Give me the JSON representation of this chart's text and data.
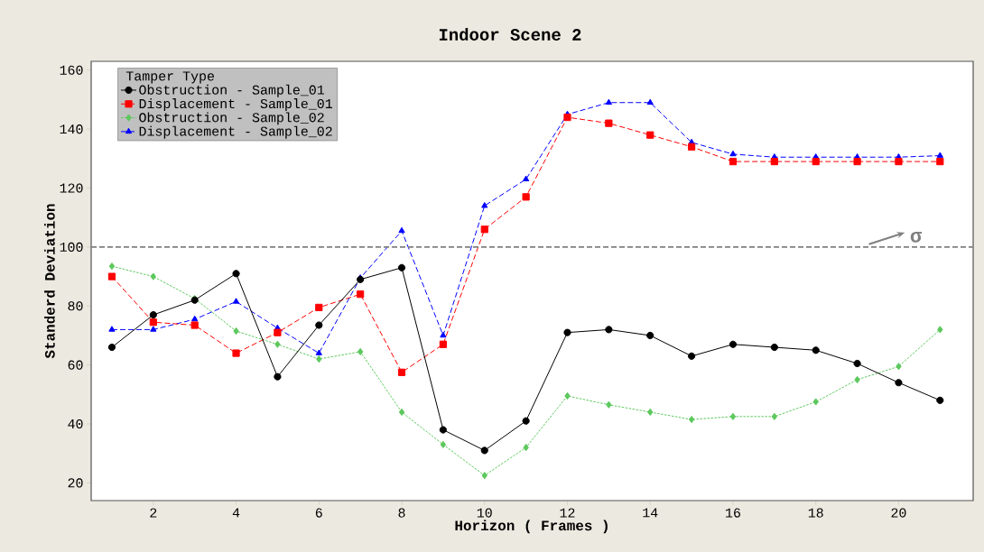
{
  "chart_data": {
    "type": "line",
    "title": "Indoor Scene 2",
    "xlabel": "Horizon ( Frames )",
    "ylabel": "Standerd Deviation",
    "legend_title": "Tamper Type",
    "x": [
      1,
      2,
      3,
      4,
      5,
      6,
      7,
      8,
      9,
      10,
      11,
      12,
      13,
      14,
      15,
      16,
      17,
      18,
      19,
      20,
      21
    ],
    "series": [
      {
        "name": "Obstruction - Sample_01",
        "color": "#000000",
        "marker": "circle",
        "line_style": "solid",
        "values": [
          66,
          77,
          82,
          91,
          56,
          73.5,
          89,
          93,
          38,
          31,
          41,
          71,
          72,
          70,
          63,
          67,
          66,
          65,
          60.5,
          54,
          48
        ]
      },
      {
        "name": "Displacement - Sample_01",
        "color": "#ff0000",
        "marker": "square",
        "line_style": "dashed",
        "values": [
          90,
          74.5,
          73.5,
          64,
          71,
          79.5,
          84,
          57.5,
          67,
          106,
          117,
          144,
          142,
          138,
          134,
          129,
          129,
          129,
          129,
          129,
          129
        ]
      },
      {
        "name": "Obstruction - Sample_02",
        "color": "#5cc85c",
        "marker": "diamond",
        "line_style": "dotted",
        "values": [
          93.5,
          90,
          82.5,
          71.5,
          67,
          62,
          64.5,
          44,
          33,
          22.5,
          32,
          49.5,
          46.5,
          44,
          41.5,
          42.5,
          42.5,
          47.5,
          55,
          59.5,
          72
        ]
      },
      {
        "name": "Displacement - Sample_02",
        "color": "#0000ff",
        "marker": "triangle",
        "line_style": "dashed",
        "values": [
          72,
          72,
          75.5,
          81.5,
          72.5,
          64,
          89.5,
          105.5,
          70,
          114,
          123,
          145,
          149,
          149,
          135.5,
          131.5,
          130.5,
          130.5,
          130.5,
          130.5,
          131
        ]
      }
    ],
    "xlim": [
      0.5,
      21.8
    ],
    "ylim": [
      14,
      163
    ],
    "xticks": [
      2,
      4,
      6,
      8,
      10,
      12,
      14,
      16,
      18,
      20
    ],
    "yticks": [
      20,
      40,
      60,
      80,
      100,
      120,
      140,
      160
    ],
    "ref_lines": [
      {
        "axis": "y",
        "value": 100,
        "color": "#808080",
        "line_style": "dashed"
      }
    ],
    "annotations": [
      "σ"
    ],
    "legend": "top left",
    "grid": false
  }
}
